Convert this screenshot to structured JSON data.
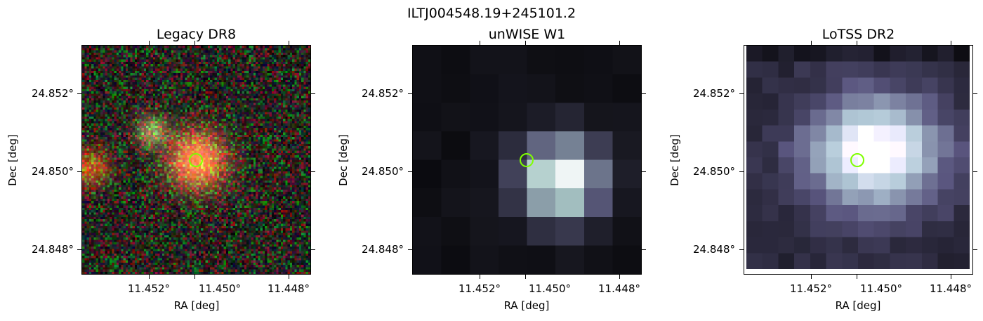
{
  "figure": {
    "suptitle": "ILTJ004548.19+245101.2",
    "panels": [
      {
        "title": "Legacy DR8",
        "xlabel": "RA [deg]",
        "ylabel": "Dec [deg]",
        "xticks": [
          "11.452°",
          "11.450°",
          "11.448°"
        ],
        "yticks": [
          "24.852°",
          "24.850°",
          "24.848°"
        ],
        "colormap": "rgb-noise",
        "marker_color": "#7fff00"
      },
      {
        "title": "unWISE W1",
        "xlabel": "RA [deg]",
        "ylabel": "Dec [deg]",
        "xticks": [
          "11.452°",
          "11.450°",
          "11.448°"
        ],
        "yticks": [
          "24.852°",
          "24.850°",
          "24.848°"
        ],
        "colormap": "bone",
        "marker_color": "#7fff00"
      },
      {
        "title": "LoTSS DR2",
        "xlabel": "RA [deg]",
        "ylabel": "Dec [deg]",
        "xticks": [
          "11.452°",
          "11.450°",
          "11.448°"
        ],
        "yticks": [
          "24.852°",
          "24.850°",
          "24.848°"
        ],
        "colormap": "bone",
        "marker_color": "#7fff00"
      }
    ]
  }
}
